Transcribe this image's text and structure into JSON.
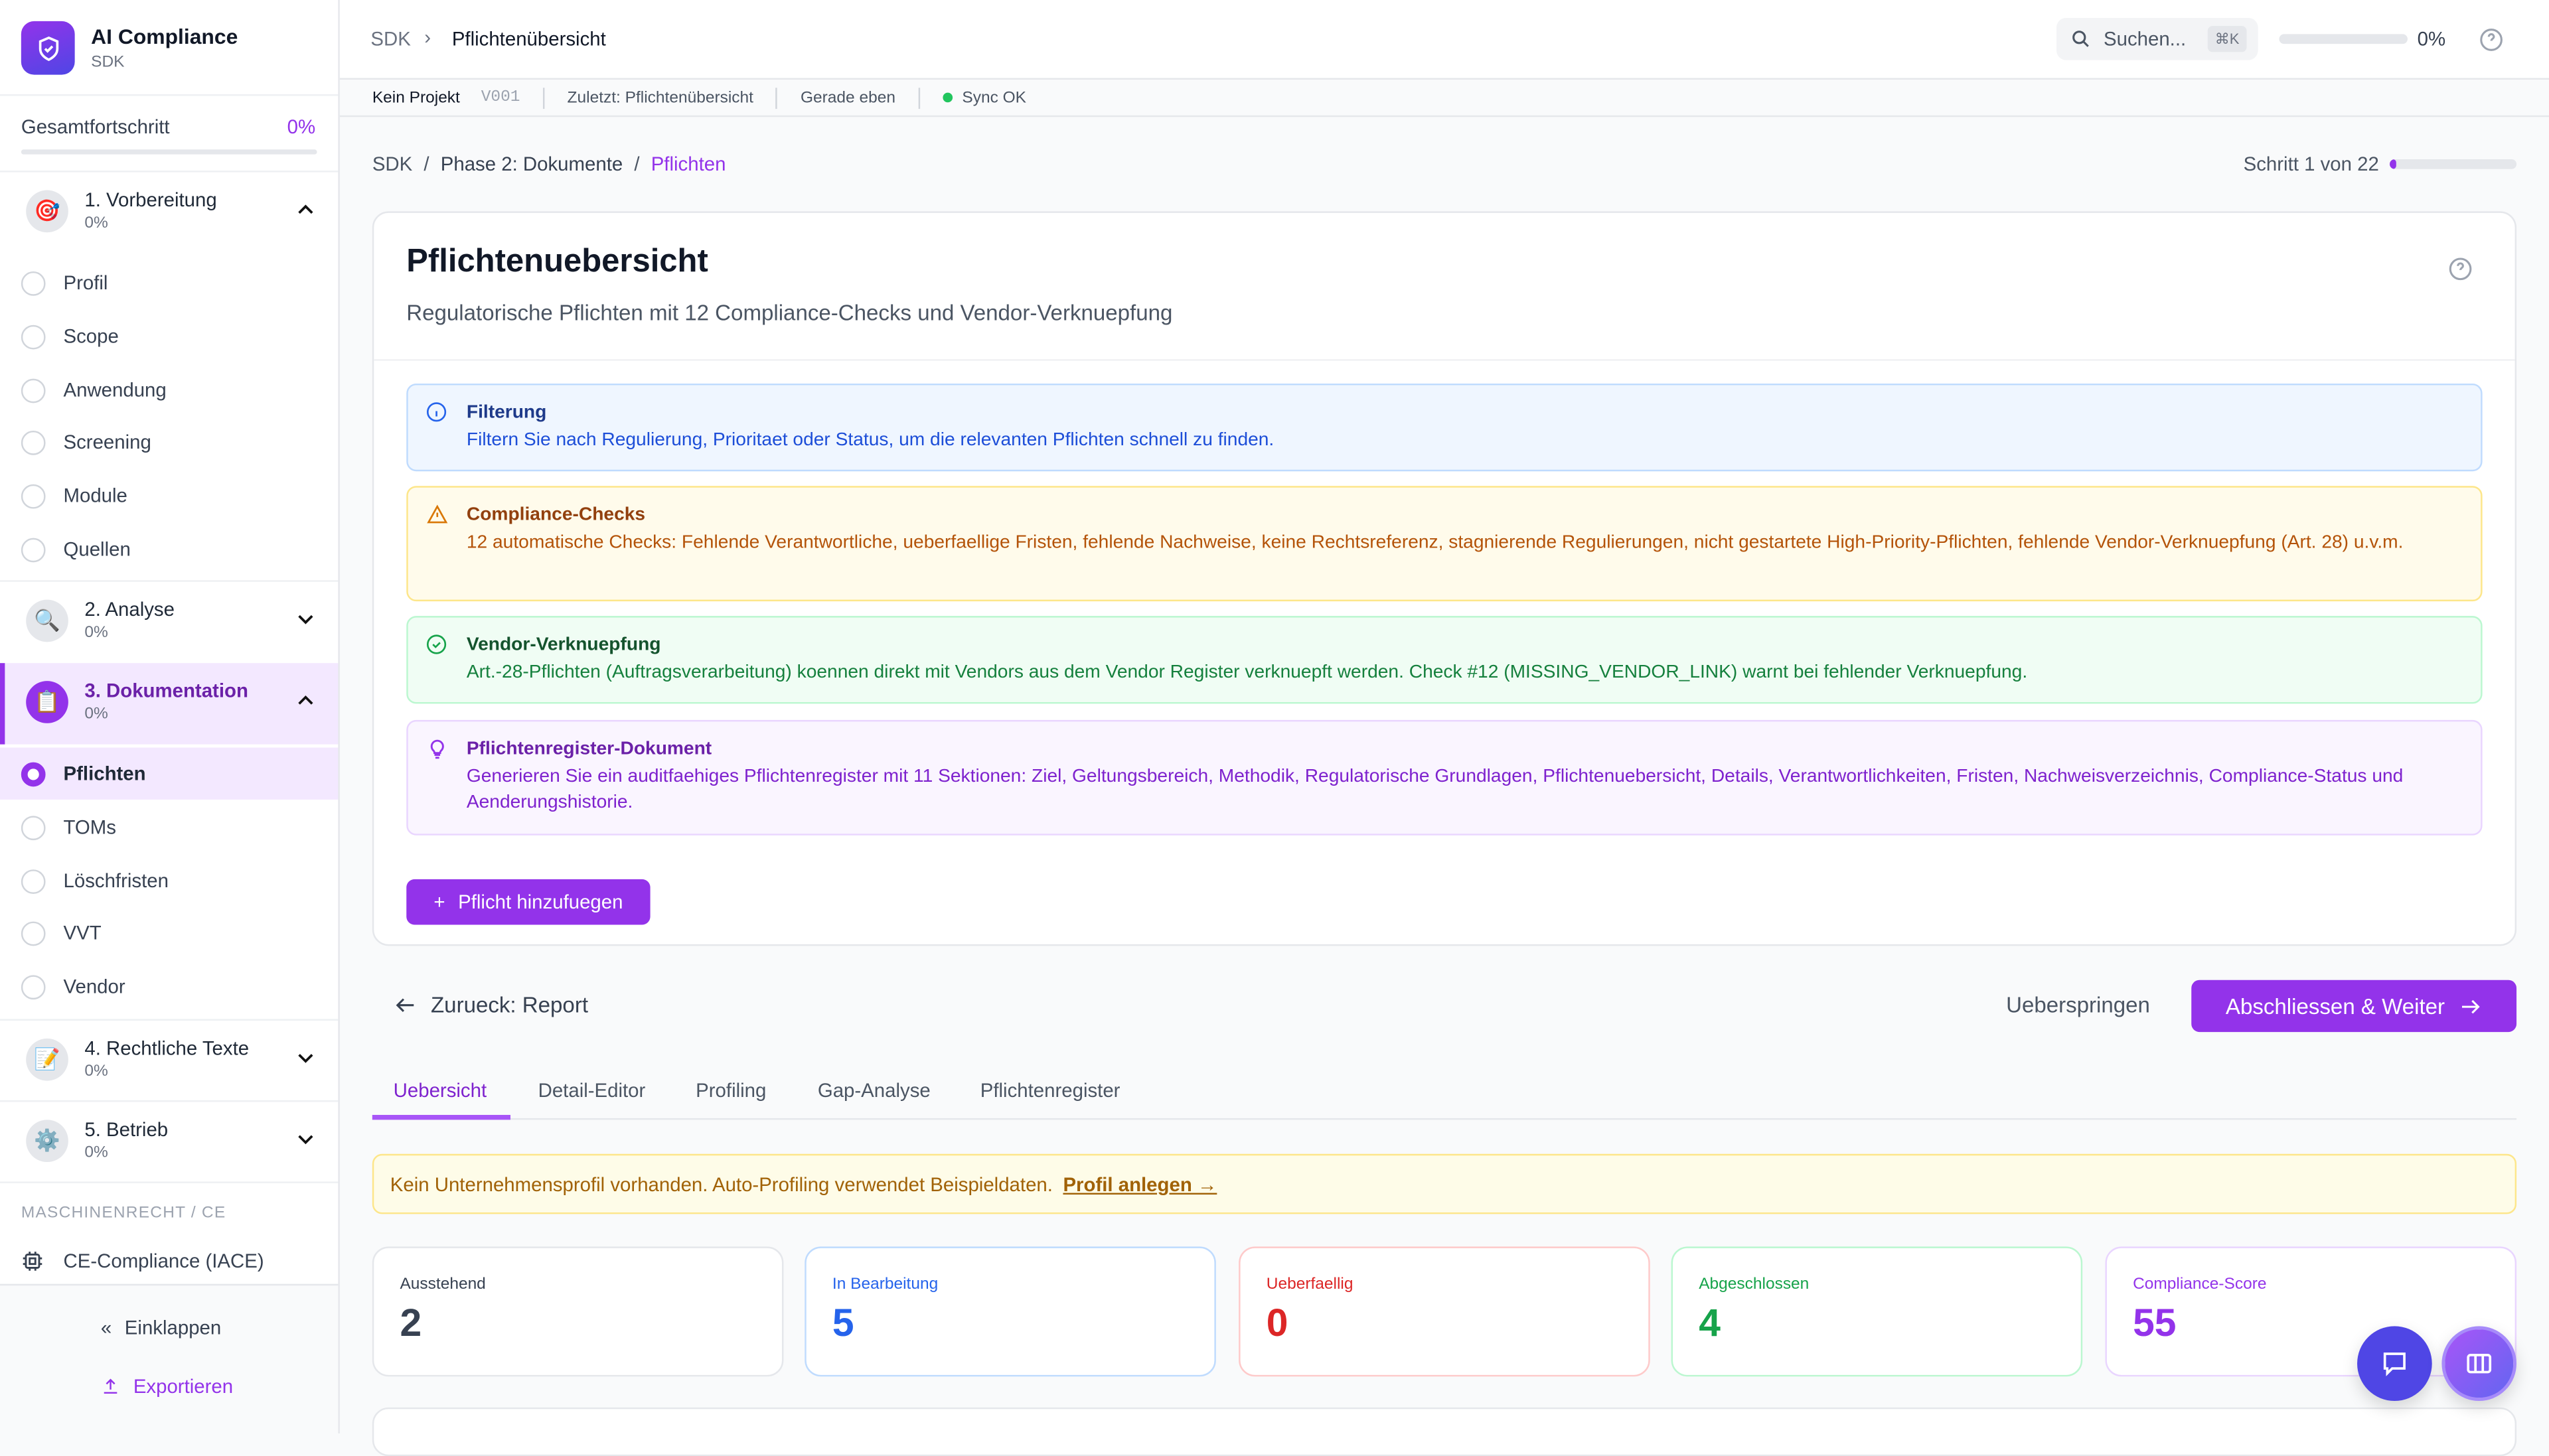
{
  "colors": {
    "accent": "#9333ea",
    "info": "#2563eb",
    "warning": "#b45309",
    "success": "#16a34a",
    "danger": "#dc2626"
  },
  "sidebar": {
    "app_title": "AI Compliance",
    "app_subtitle": "SDK",
    "progress_label": "Gesamtfortschritt",
    "progress_value": "0%",
    "progress_fraction": 0,
    "sections": [
      {
        "label": "1. Vorbereitung",
        "progress": "0%",
        "icon": "target-icon",
        "expanded": true,
        "items": [
          {
            "label": "Profil"
          },
          {
            "label": "Scope"
          },
          {
            "label": "Anwendung"
          },
          {
            "label": "Screening"
          },
          {
            "label": "Module"
          },
          {
            "label": "Quellen"
          }
        ]
      },
      {
        "label": "2. Analyse",
        "progress": "0%",
        "icon": "magnifier-icon",
        "expanded": false
      },
      {
        "label": "3. Dokumentation",
        "progress": "0%",
        "icon": "clipboard-icon",
        "expanded": true,
        "items": [
          {
            "label": "Pflichten",
            "active": true
          },
          {
            "label": "TOMs"
          },
          {
            "label": "Löschfristen"
          },
          {
            "label": "VVT"
          },
          {
            "label": "Vendor"
          }
        ]
      },
      {
        "label": "4. Rechtliche Texte",
        "progress": "0%",
        "icon": "document-pencil-icon",
        "expanded": false
      },
      {
        "label": "5. Betrieb",
        "progress": "0%",
        "icon": "gear-icon",
        "expanded": false
      }
    ],
    "group_label": "MASCHINENRECHT / CE",
    "ce_item": "CE-Compliance (IACE)",
    "collapse_label": "Einklappen",
    "export_label": "Exportieren"
  },
  "topbar": {
    "breadcrumb_root": "SDK",
    "breadcrumb_current": "Pflichtenübersicht",
    "search_placeholder": "Suchen...",
    "search_shortcut": "⌘K",
    "progress_value": "0%",
    "progress_fraction": 0
  },
  "statusbar": {
    "project": "Kein Projekt",
    "version": "V001",
    "last": "Zuletzt: Pflichtenübersicht",
    "time": "Gerade eben",
    "sync": "Sync OK"
  },
  "breadcrumb": {
    "items": [
      "SDK",
      "Phase 2: Dokumente",
      "Pflichten"
    ],
    "step_label": "Schritt 1 von 22",
    "step_fraction": 0.045
  },
  "page": {
    "title": "Pflichtenuebersicht",
    "subtitle": "Regulatorische Pflichten mit 12 Compliance-Checks und Vendor-Verknuepfung",
    "callouts": [
      {
        "title": "Filterung",
        "text": "Filtern Sie nach Regulierung, Prioritaet oder Status, um die relevanten Pflichten schnell zu finden."
      },
      {
        "title": "Compliance-Checks",
        "text": "12 automatische Checks: Fehlende Verantwortliche, ueberfaellige Fristen, fehlende Nachweise, keine Rechtsreferenz, stagnierende Regulierungen, nicht gestartete High-Priority-Pflichten, fehlende Vendor-Verknuepfung (Art. 28) u.v.m."
      },
      {
        "title": "Vendor-Verknuepfung",
        "text": "Art.-28-Pflichten (Auftragsverarbeitung) koennen direkt mit Vendors aus dem Vendor Register verknuepft werden. Check #12 (MISSING_VENDOR_LINK) warnt bei fehlender Verknuepfung."
      },
      {
        "title": "Pflichtenregister-Dokument",
        "text": "Generieren Sie ein auditfaehiges Pflichtenregister mit 11 Sektionen: Ziel, Geltungsbereich, Methodik, Regulatorische Grundlagen, Pflichtenuebersicht, Details, Verantwortlichkeiten, Fristen, Nachweisverzeichnis, Compliance-Status und Aenderungshistorie."
      }
    ],
    "add_button": "Pflicht hinzufuegen"
  },
  "nav": {
    "back": "Zurueck: Report",
    "skip": "Ueberspringen",
    "next": "Abschliessen & Weiter"
  },
  "tabs": [
    {
      "label": "Uebersicht",
      "active": true
    },
    {
      "label": "Detail-Editor"
    },
    {
      "label": "Profiling"
    },
    {
      "label": "Gap-Analyse"
    },
    {
      "label": "Pflichtenregister"
    }
  ],
  "banner": {
    "text": "Kein Unternehmensprofil vorhanden. Auto-Profiling verwendet Beispieldaten.",
    "link": "Profil anlegen →"
  },
  "stats": [
    {
      "label": "Ausstehend",
      "value": "2",
      "color": "#374151"
    },
    {
      "label": "In Bearbeitung",
      "value": "5",
      "color": "#2563eb"
    },
    {
      "label": "Ueberfaellig",
      "value": "0",
      "color": "#dc2626"
    },
    {
      "label": "Abgeschlossen",
      "value": "4",
      "color": "#16a34a"
    },
    {
      "label": "Compliance-Score",
      "value": "55",
      "color": "#9333ea"
    }
  ]
}
